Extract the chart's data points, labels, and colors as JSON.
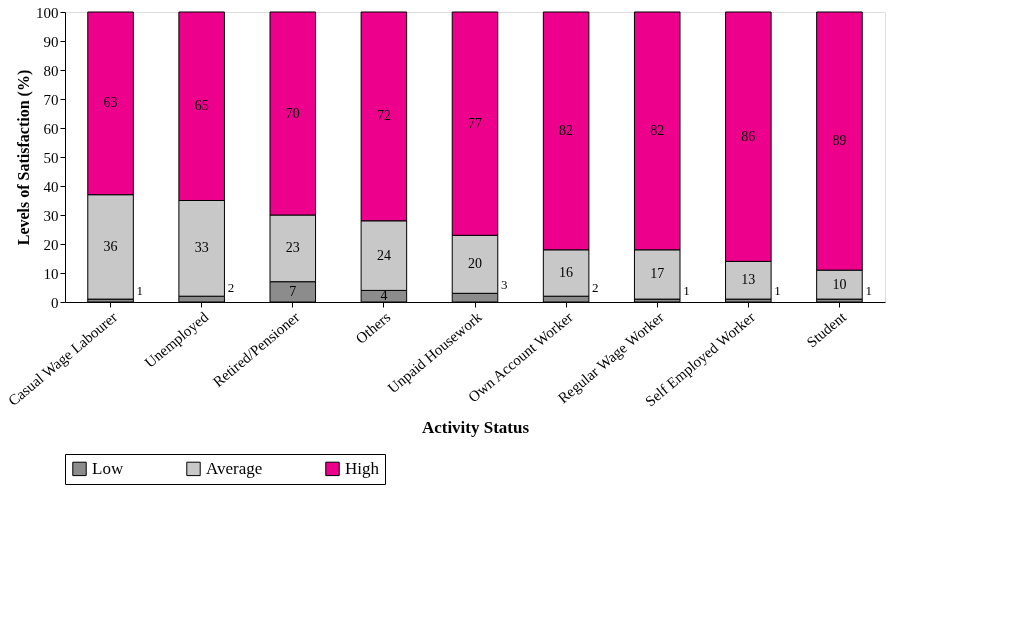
{
  "chart_data": {
    "type": "bar",
    "stacked": true,
    "xlabel": "Activity Status",
    "ylabel": "Levels of Satisfaction (%)",
    "categories": [
      "Casual Wage Labourer",
      "Unemployed",
      "Retired/Pensioner",
      "Others",
      "Unpaid Housework",
      "Own Account Worker",
      "Regular Wage Worker",
      "Self Employed Worker",
      "Student"
    ],
    "series": [
      {
        "name": "Low",
        "color": "#8c8c8c",
        "values": [
          1,
          2,
          7,
          4,
          3,
          2,
          1,
          1,
          1
        ]
      },
      {
        "name": "Average",
        "color": "#c8c8c8",
        "values": [
          36,
          33,
          23,
          24,
          20,
          16,
          17,
          13,
          10
        ]
      },
      {
        "name": "High",
        "color": "#ec008c",
        "values": [
          63,
          65,
          70,
          72,
          77,
          82,
          82,
          86,
          89
        ]
      }
    ],
    "ylim": [
      0,
      100
    ],
    "yticks": [
      0,
      10,
      20,
      30,
      40,
      50,
      60,
      70,
      80,
      90,
      100
    ],
    "grid": false,
    "legend": "bottom",
    "data_labels": true
  }
}
